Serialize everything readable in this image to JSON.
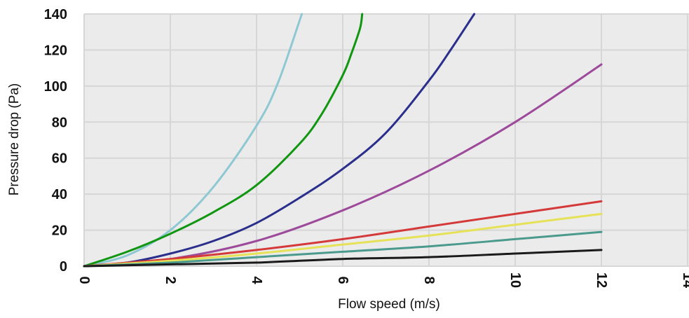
{
  "chart_data": {
    "type": "line",
    "title": "",
    "xlabel": "Flow speed (m/s)",
    "ylabel": "Pressure drop (Pa)",
    "xlim": [
      0,
      14
    ],
    "ylim": [
      0,
      140
    ],
    "x_ticks": [
      0,
      2,
      4,
      6,
      8,
      10,
      12,
      14
    ],
    "y_ticks": [
      0,
      20,
      40,
      60,
      80,
      100,
      120,
      140
    ],
    "grid": true,
    "legend": "none",
    "plot_background": "#ebebeb",
    "grid_color": "#d6d6d6",
    "series": [
      {
        "color": "#8ec8d2",
        "x": [
          0,
          1,
          2,
          3,
          4,
          4.5,
          5.05
        ],
        "y": [
          0,
          6,
          20,
          44,
          78,
          102,
          140
        ]
      },
      {
        "color": "#119611",
        "x": [
          0,
          1,
          2,
          3,
          4,
          5,
          5.5,
          6,
          6.2,
          6.4,
          6.45
        ],
        "y": [
          0,
          8,
          18,
          30,
          45,
          68,
          84,
          106,
          118,
          132,
          140
        ]
      },
      {
        "color": "#2b2f8c",
        "x": [
          0,
          1,
          2,
          3,
          4,
          5,
          6,
          7,
          8,
          8.5,
          9.05
        ],
        "y": [
          0,
          2,
          7,
          14,
          24,
          38,
          54,
          74,
          103,
          120,
          140
        ]
      },
      {
        "color": "#9d4a9b",
        "x": [
          0,
          2,
          4,
          6,
          8,
          10,
          12
        ],
        "y": [
          0,
          4,
          14,
          31,
          53,
          80,
          112
        ]
      },
      {
        "color": "#d43a3a",
        "x": [
          0,
          2,
          4,
          6,
          8,
          10,
          12
        ],
        "y": [
          0,
          4,
          9,
          15,
          22,
          29,
          36
        ]
      },
      {
        "color": "#e6e258",
        "x": [
          0,
          2,
          4,
          6,
          8,
          10,
          12
        ],
        "y": [
          0,
          3,
          7,
          12,
          17,
          23,
          29
        ]
      },
      {
        "color": "#4b9a8e",
        "x": [
          0,
          2,
          4,
          6,
          8,
          10,
          12
        ],
        "y": [
          0,
          2,
          5,
          8,
          11,
          15,
          19
        ]
      },
      {
        "color": "#1a1a1a",
        "x": [
          0,
          2,
          4,
          6,
          8,
          10,
          12
        ],
        "y": [
          0,
          1,
          2,
          4,
          5,
          7,
          9
        ]
      }
    ]
  }
}
